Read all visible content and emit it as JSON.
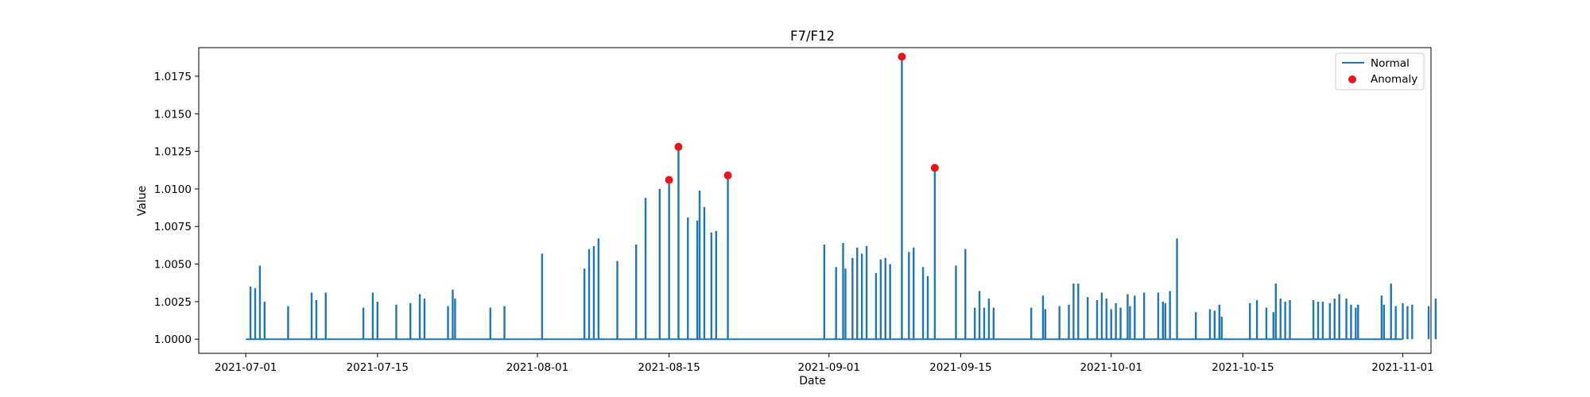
{
  "chart_data": {
    "type": "line",
    "title": "F7/F12",
    "xlabel": "Date",
    "ylabel": "Value",
    "xlim": [
      "2021-06-26",
      "2021-11-04"
    ],
    "ylim": [
      0.99906,
      1.0194
    ],
    "x_ticks": [
      "2021-07-01",
      "2021-07-15",
      "2021-08-01",
      "2021-08-15",
      "2021-09-01",
      "2021-09-15",
      "2021-10-01",
      "2021-10-15",
      "2021-11-01"
    ],
    "y_ticks": [
      1.0,
      1.0025,
      1.005,
      1.0075,
      1.01,
      1.0125,
      1.015,
      1.0175
    ],
    "y_tick_labels": [
      "1.0000",
      "1.0025",
      "1.0050",
      "1.0075",
      "1.0100",
      "1.0125",
      "1.0150",
      "1.0175"
    ],
    "baseline": 1.0,
    "x_start": "2021-07-01",
    "x_end": "2021-11-01",
    "legend": {
      "placement": "top-right",
      "entries": [
        "Normal",
        "Anomaly"
      ]
    },
    "grid": false,
    "series": [
      {
        "name": "Normal",
        "color": "#1f77b4",
        "points": [
          [
            "2021-07-01 12:00",
            1.0035
          ],
          [
            "2021-07-02 00:00",
            1.0034
          ],
          [
            "2021-07-02 12:00",
            1.0049
          ],
          [
            "2021-07-03 00:00",
            1.0025
          ],
          [
            "2021-07-05 12:00",
            1.0022
          ],
          [
            "2021-07-08 00:00",
            1.0031
          ],
          [
            "2021-07-08 12:00",
            1.0026
          ],
          [
            "2021-07-09 12:00",
            1.0031
          ],
          [
            "2021-07-13 12:00",
            1.0021
          ],
          [
            "2021-07-14 12:00",
            1.0031
          ],
          [
            "2021-07-15 00:00",
            1.0025
          ],
          [
            "2021-07-17 00:00",
            1.0023
          ],
          [
            "2021-07-18 12:00",
            1.0024
          ],
          [
            "2021-07-19 12:00",
            1.003
          ],
          [
            "2021-07-20 00:00",
            1.0027
          ],
          [
            "2021-07-22 12:00",
            1.0022
          ],
          [
            "2021-07-23 00:00",
            1.0033
          ],
          [
            "2021-07-23 06:00",
            1.0027
          ],
          [
            "2021-07-27 00:00",
            1.0021
          ],
          [
            "2021-07-28 12:00",
            1.0022
          ],
          [
            "2021-08-01 12:00",
            1.0057
          ],
          [
            "2021-08-06 00:00",
            1.0047
          ],
          [
            "2021-08-06 12:00",
            1.006
          ],
          [
            "2021-08-07 00:00",
            1.0062
          ],
          [
            "2021-08-07 12:00",
            1.0067
          ],
          [
            "2021-08-09 12:00",
            1.0052
          ],
          [
            "2021-08-11 12:00",
            1.0063
          ],
          [
            "2021-08-12 12:00",
            1.0094
          ],
          [
            "2021-08-14 00:00",
            1.01
          ],
          [
            "2021-08-15 00:00",
            1.0106
          ],
          [
            "2021-08-16 00:00",
            1.0128
          ],
          [
            "2021-08-17 00:00",
            1.0081
          ],
          [
            "2021-08-18 00:00",
            1.0079
          ],
          [
            "2021-08-18 06:00",
            1.0099
          ],
          [
            "2021-08-18 18:00",
            1.0088
          ],
          [
            "2021-08-19 12:00",
            1.0071
          ],
          [
            "2021-08-20 00:00",
            1.0072
          ],
          [
            "2021-08-21 06:00",
            1.0109
          ],
          [
            "2021-08-31 12:00",
            1.0063
          ],
          [
            "2021-09-01 18:00",
            1.0048
          ],
          [
            "2021-09-02 12:00",
            1.0064
          ],
          [
            "2021-09-02 18:00",
            1.0047
          ],
          [
            "2021-09-03 12:00",
            1.0054
          ],
          [
            "2021-09-04 00:00",
            1.0061
          ],
          [
            "2021-09-04 12:00",
            1.0057
          ],
          [
            "2021-09-05 00:00",
            1.0062
          ],
          [
            "2021-09-06 00:00",
            1.0044
          ],
          [
            "2021-09-06 12:00",
            1.0053
          ],
          [
            "2021-09-07 00:00",
            1.0054
          ],
          [
            "2021-09-07 12:00",
            1.005
          ],
          [
            "2021-09-08 18:00",
            1.0188
          ],
          [
            "2021-09-09 12:00",
            1.0058
          ],
          [
            "2021-09-10 00:00",
            1.0061
          ],
          [
            "2021-09-11 00:00",
            1.0048
          ],
          [
            "2021-09-11 12:00",
            1.0042
          ],
          [
            "2021-09-12 06:00",
            1.0114
          ],
          [
            "2021-09-14 12:00",
            1.0049
          ],
          [
            "2021-09-15 12:00",
            1.006
          ],
          [
            "2021-09-16 12:00",
            1.0021
          ],
          [
            "2021-09-17 00:00",
            1.0032
          ],
          [
            "2021-09-17 12:00",
            1.0021
          ],
          [
            "2021-09-18 00:00",
            1.0027
          ],
          [
            "2021-09-18 12:00",
            1.0021
          ],
          [
            "2021-09-22 12:00",
            1.0021
          ],
          [
            "2021-09-23 18:00",
            1.0029
          ],
          [
            "2021-09-24 00:00",
            1.002
          ],
          [
            "2021-09-25 12:00",
            1.0022
          ],
          [
            "2021-09-26 12:00",
            1.0023
          ],
          [
            "2021-09-27 00:00",
            1.0037
          ],
          [
            "2021-09-27 12:00",
            1.0037
          ],
          [
            "2021-09-28 12:00",
            1.0028
          ],
          [
            "2021-09-29 12:00",
            1.0026
          ],
          [
            "2021-09-30 00:00",
            1.0031
          ],
          [
            "2021-09-30 12:00",
            1.0027
          ],
          [
            "2021-10-01 00:00",
            1.002
          ],
          [
            "2021-10-01 12:00",
            1.0024
          ],
          [
            "2021-10-02 00:00",
            1.0021
          ],
          [
            "2021-10-02 18:00",
            1.003
          ],
          [
            "2021-10-03 00:00",
            1.0022
          ],
          [
            "2021-10-03 12:00",
            1.0029
          ],
          [
            "2021-10-04 12:00",
            1.0031
          ],
          [
            "2021-10-06 00:00",
            1.0031
          ],
          [
            "2021-10-06 12:00",
            1.0025
          ],
          [
            "2021-10-06 18:00",
            1.0024
          ],
          [
            "2021-10-07 06:00",
            1.0032
          ],
          [
            "2021-10-08 00:00",
            1.0067
          ],
          [
            "2021-10-10 00:00",
            1.0018
          ],
          [
            "2021-10-11 12:00",
            1.002
          ],
          [
            "2021-10-12 00:00",
            1.0019
          ],
          [
            "2021-10-12 12:00",
            1.0023
          ],
          [
            "2021-10-12 18:00",
            1.0015
          ],
          [
            "2021-10-15 18:00",
            1.0024
          ],
          [
            "2021-10-16 12:00",
            1.0026
          ],
          [
            "2021-10-17 12:00",
            1.0021
          ],
          [
            "2021-10-18 06:00",
            1.0018
          ],
          [
            "2021-10-18 12:00",
            1.0037
          ],
          [
            "2021-10-19 00:00",
            1.0027
          ],
          [
            "2021-10-19 12:00",
            1.0025
          ],
          [
            "2021-10-20 00:00",
            1.0026
          ],
          [
            "2021-10-22 12:00",
            1.0026
          ],
          [
            "2021-10-23 00:00",
            1.0025
          ],
          [
            "2021-10-23 12:00",
            1.0025
          ],
          [
            "2021-10-24 06:00",
            1.0024
          ],
          [
            "2021-10-24 18:00",
            1.0027
          ],
          [
            "2021-10-25 06:00",
            1.003
          ],
          [
            "2021-10-26 00:00",
            1.0027
          ],
          [
            "2021-10-26 12:00",
            1.0023
          ],
          [
            "2021-10-27 00:00",
            1.0021
          ],
          [
            "2021-10-27 06:00",
            1.0023
          ],
          [
            "2021-10-29 18:00",
            1.0029
          ],
          [
            "2021-10-30 00:00",
            1.0023
          ],
          [
            "2021-10-30 18:00",
            1.0037
          ],
          [
            "2021-10-31 06:00",
            1.0022
          ],
          [
            "2021-11-01 00:00",
            1.0024
          ],
          [
            "2021-11-01 12:00",
            1.0022
          ],
          [
            "2021-11-02 00:00",
            1.0023
          ],
          [
            "2021-11-03 18:00",
            1.0022
          ],
          [
            "2021-11-04 12:00",
            1.0027
          ]
        ]
      },
      {
        "name": "Anomaly",
        "color": "#e8161a",
        "type": "scatter",
        "points": [
          [
            "2021-08-15 00:00",
            1.0106
          ],
          [
            "2021-08-16 00:00",
            1.0128
          ],
          [
            "2021-08-21 06:00",
            1.0109
          ],
          [
            "2021-09-08 18:00",
            1.0188
          ],
          [
            "2021-09-12 06:00",
            1.0114
          ]
        ]
      }
    ]
  }
}
